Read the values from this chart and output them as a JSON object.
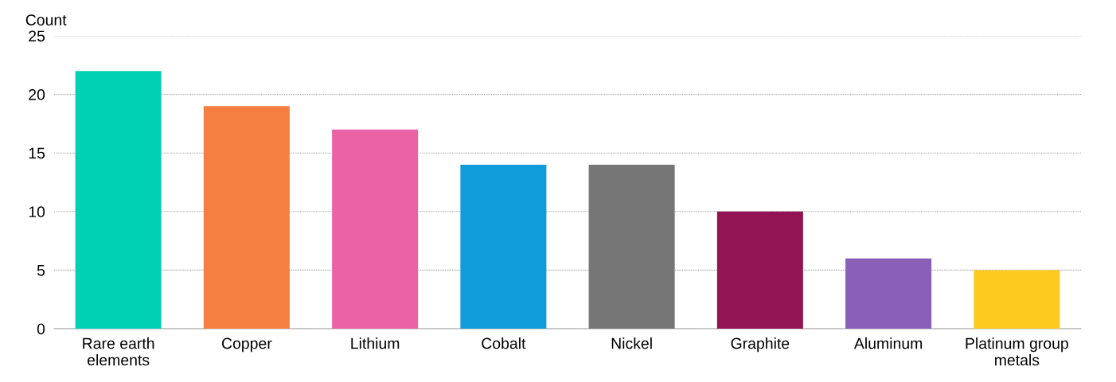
{
  "chart_data": {
    "type": "bar",
    "ylabel": "Count",
    "categories": [
      "Rare earth\nelements",
      "Copper",
      "Lithium",
      "Cobalt",
      "Nickel",
      "Graphite",
      "Aluminum",
      "Platinum group\nmetals"
    ],
    "values": [
      22,
      19,
      17,
      14,
      14,
      10,
      6,
      5
    ],
    "colors": [
      "#00d1b4",
      "#f47f40",
      "#e963a6",
      "#119ddb",
      "#767676",
      "#931455",
      "#8a5fb8",
      "#fdca1f"
    ],
    "ylim": [
      0,
      25
    ],
    "yticks": [
      0,
      5,
      10,
      15,
      20,
      25
    ],
    "grid": "y",
    "legend": false
  }
}
